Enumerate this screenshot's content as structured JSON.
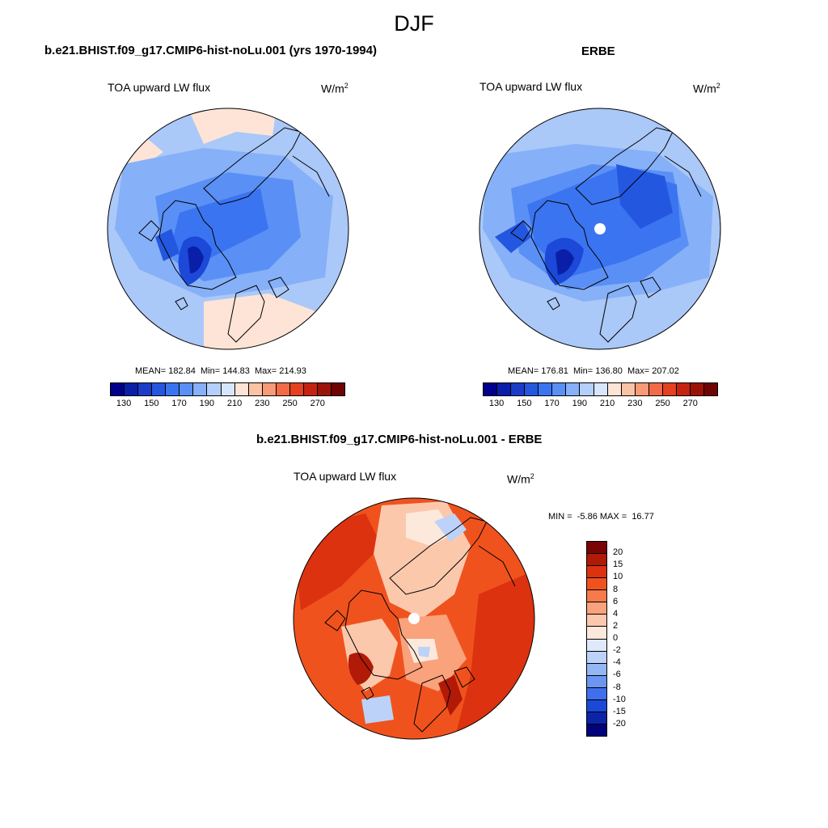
{
  "figure": {
    "title": "DJF"
  },
  "panels": [
    {
      "title": "b.e21.BHIST.f09_g17.CMIP6-hist-noLu.001 (yrs 1970-1994)",
      "subtitle": "TOA upward LW flux",
      "units": "W/m",
      "units_sup": "2",
      "stats": "MEAN= 182.84  Min= 144.83  Max= 214.93",
      "mean": 182.84,
      "min": 144.83,
      "max": 214.93
    },
    {
      "title": "ERBE",
      "subtitle": "TOA upward LW flux",
      "units": "W/m",
      "units_sup": "2",
      "stats": "MEAN= 176.81  Min= 136.80  Max= 207.02",
      "mean": 176.81,
      "min": 136.8,
      "max": 207.02
    },
    {
      "title": "b.e21.BHIST.f09_g17.CMIP6-hist-noLu.001 - ERBE",
      "subtitle": "TOA upward LW flux",
      "units": "W/m",
      "units_sup": "2",
      "stats": "MIN =  -5.86 MAX =  16.77",
      "min": -5.86,
      "max": 16.77
    }
  ],
  "colorbar_abs": {
    "labels": [
      "130",
      "150",
      "170",
      "190",
      "210",
      "230",
      "250",
      "270"
    ],
    "colors": [
      "#00008b",
      "#0a1fa8",
      "#1a3cc8",
      "#2457e0",
      "#3b74f0",
      "#5a90f5",
      "#86b0f8",
      "#b4cffb",
      "#d8e6fd",
      "#fde4d6",
      "#fbc3a6",
      "#f79a76",
      "#f26a48",
      "#e5401f",
      "#c52312",
      "#9c1208",
      "#6e0404"
    ]
  },
  "colorbar_diff": {
    "labels": [
      "20",
      "15",
      "10",
      "8",
      "6",
      "4",
      "2",
      "0",
      "-2",
      "-4",
      "-6",
      "-8",
      "-10",
      "-15",
      "-20"
    ],
    "colors": [
      "#7a0403",
      "#b01a07",
      "#dc3210",
      "#f0521e",
      "#f67a4c",
      "#f9a27c",
      "#fcc8ac",
      "#fde8dc",
      "#dfe9fb",
      "#bcd2f8",
      "#93b6f5",
      "#6a95f1",
      "#3f6fec",
      "#1c48d8",
      "#0b24a8",
      "#00037a"
    ]
  },
  "colors": {
    "abs_ocean": "#aac8f8",
    "abs_deep": "#4d85f0",
    "abs_core": "#1c49d8",
    "abs_warm": "#fde4d6",
    "diff_base": "#e8481c",
    "diff_light": "#fcc8ac",
    "diff_blue": "#bcd2f8"
  }
}
